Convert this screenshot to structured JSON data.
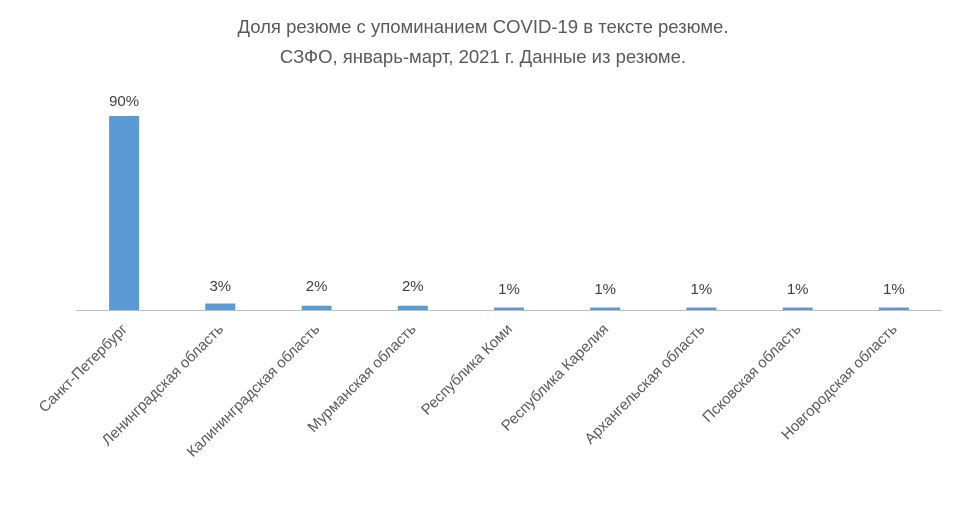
{
  "chart_data": {
    "type": "bar",
    "title_line1": "Доля резюме с упоминанием COVID-19 в тексте резюме.",
    "title_line2": "СЗФО, январь-март, 2021 г. Данные из резюме.",
    "categories": [
      "Санкт-Петербург",
      "Ленинградская область",
      "Калининградская область",
      "Мурманская область",
      "Республика Коми",
      "Республика Карелия",
      "Архангельская область",
      "Псковская область",
      "Новгородская область"
    ],
    "values": [
      90,
      3,
      2,
      2,
      1,
      1,
      1,
      1,
      1
    ],
    "data_labels": [
      "90%",
      "3%",
      "2%",
      "2%",
      "1%",
      "1%",
      "1%",
      "1%",
      "1%"
    ],
    "ylim": [
      0,
      90
    ],
    "bar_color": "#5b9bd5",
    "label_color": "#404040",
    "axis_color": "#bfbfbf",
    "category_label_color": "#595959",
    "grid": false,
    "legend": "none"
  }
}
